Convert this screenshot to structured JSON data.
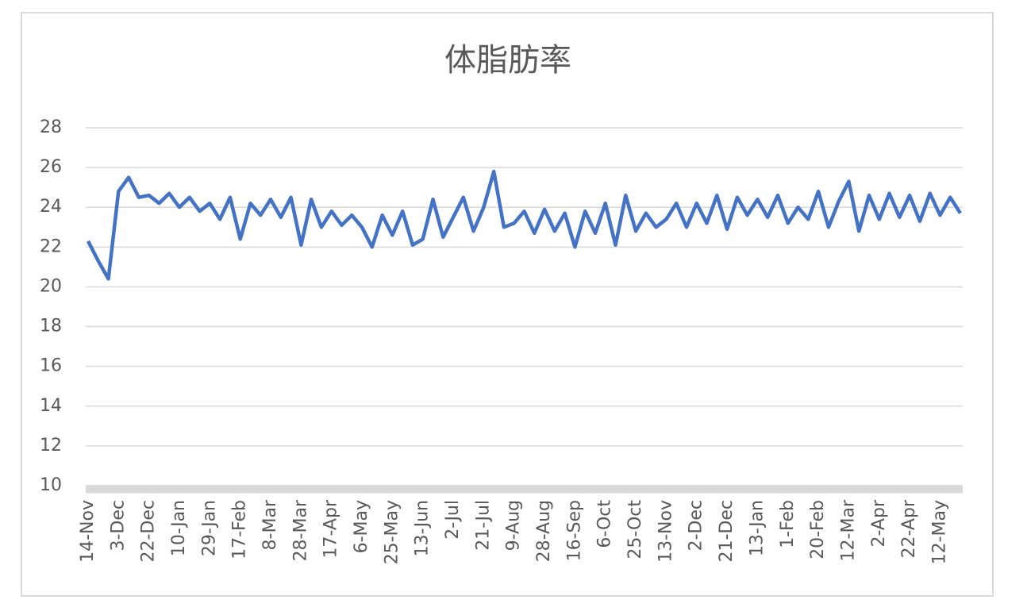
{
  "chart_data": {
    "type": "line",
    "title": "体脂肪率",
    "categories": [
      "14-Nov",
      null,
      null,
      "3-Dec",
      null,
      null,
      "22-Dec",
      null,
      null,
      "10-Jan",
      null,
      null,
      "29-Jan",
      null,
      null,
      "17-Feb",
      null,
      null,
      "8-Mar",
      null,
      null,
      "28-Mar",
      null,
      null,
      "17-Apr",
      null,
      null,
      "6-May",
      null,
      null,
      "25-May",
      null,
      null,
      "13-Jun",
      null,
      null,
      "2-Jul",
      null,
      null,
      "21-Jul",
      null,
      null,
      "9-Aug",
      null,
      null,
      "28-Aug",
      null,
      null,
      "16-Sep",
      null,
      null,
      "6-Oct",
      null,
      null,
      "25-Oct",
      null,
      null,
      "13-Nov",
      null,
      null,
      "2-Dec",
      null,
      null,
      "21-Dec",
      null,
      null,
      "13-Jan",
      null,
      null,
      "1-Feb",
      null,
      null,
      "20-Feb",
      null,
      null,
      "12-Mar",
      null,
      null,
      "2-Apr",
      null,
      null,
      "22-Apr",
      null,
      null,
      "12-May",
      null,
      null
    ],
    "series": [
      {
        "color": "#4472c4",
        "values": [
          22.3,
          21.3,
          20.4,
          24.8,
          25.5,
          24.5,
          24.6,
          24.2,
          24.7,
          24.0,
          24.5,
          23.8,
          24.2,
          23.4,
          24.5,
          22.4,
          24.2,
          23.6,
          24.4,
          23.5,
          24.5,
          22.1,
          24.4,
          23.0,
          23.8,
          23.1,
          23.6,
          23.0,
          22.0,
          23.6,
          22.6,
          23.8,
          22.1,
          22.4,
          24.4,
          22.5,
          23.5,
          24.5,
          22.8,
          24.0,
          25.8,
          23.0,
          23.2,
          23.8,
          22.7,
          23.9,
          22.8,
          23.7,
          22.0,
          23.8,
          22.7,
          24.2,
          22.1,
          24.6,
          22.8,
          23.7,
          23.0,
          23.4,
          24.2,
          23.0,
          24.2,
          23.2,
          24.6,
          22.9,
          24.5,
          23.6,
          24.4,
          23.5,
          24.6,
          23.2,
          24.0,
          23.4,
          24.8,
          23.0,
          24.3,
          25.3,
          22.8,
          24.6,
          23.4,
          24.7,
          23.5,
          24.6,
          23.3,
          24.7,
          23.6,
          24.5,
          23.7
        ]
      }
    ],
    "ylim": [
      10,
      28
    ],
    "yticks": [
      10,
      12,
      14,
      16,
      18,
      20,
      22,
      24,
      26,
      28
    ],
    "grid": true
  }
}
